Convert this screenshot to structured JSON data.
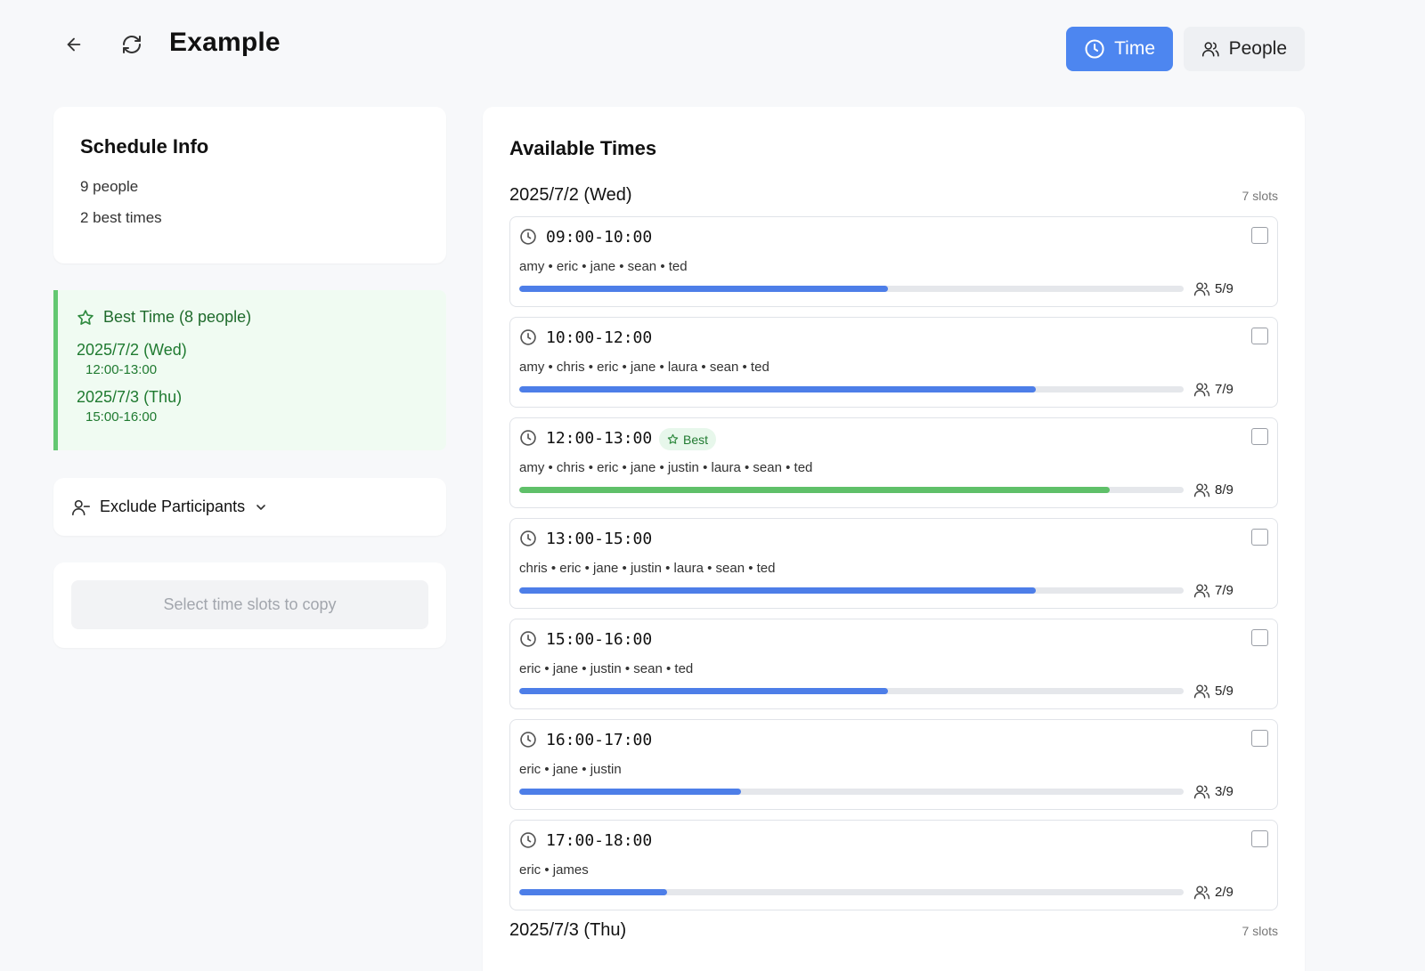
{
  "header": {
    "title": "Example",
    "view_time_label": "Time",
    "view_people_label": "People"
  },
  "schedule_info": {
    "title": "Schedule Info",
    "people": "9 people",
    "best_times": "2 best times"
  },
  "best_time": {
    "title": "Best Time (8 people)",
    "entries": [
      {
        "date": "2025/7/2 (Wed)",
        "time": "12:00-13:00"
      },
      {
        "date": "2025/7/3 (Thu)",
        "time": "15:00-16:00"
      }
    ]
  },
  "exclude": {
    "label": "Exclude Participants"
  },
  "copy": {
    "label": "Select time slots to copy"
  },
  "available": {
    "title": "Available Times",
    "days": [
      {
        "label": "2025/7/2 (Wed)",
        "count": "7 slots",
        "slots": [
          {
            "time": "09:00-10:00",
            "names": "amy • eric • jane • sean • ted",
            "count": "5/9",
            "fraction": 0.5556,
            "best": false
          },
          {
            "time": "10:00-12:00",
            "names": "amy • chris • eric • jane • laura • sean • ted",
            "count": "7/9",
            "fraction": 0.7778,
            "best": false
          },
          {
            "time": "12:00-13:00",
            "names": "amy • chris • eric • jane • justin • laura • sean • ted",
            "count": "8/9",
            "fraction": 0.8889,
            "best": true,
            "badge": "Best"
          },
          {
            "time": "13:00-15:00",
            "names": "chris • eric • jane • justin • laura • sean • ted",
            "count": "7/9",
            "fraction": 0.7778,
            "best": false
          },
          {
            "time": "15:00-16:00",
            "names": "eric • jane • justin • sean • ted",
            "count": "5/9",
            "fraction": 0.5556,
            "best": false
          },
          {
            "time": "16:00-17:00",
            "names": "eric • jane • justin",
            "count": "3/9",
            "fraction": 0.3333,
            "best": false
          },
          {
            "time": "17:00-18:00",
            "names": "eric • james",
            "count": "2/9",
            "fraction": 0.2222,
            "best": false
          }
        ]
      },
      {
        "label": "2025/7/3 (Thu)",
        "count": "7 slots",
        "slots": []
      }
    ]
  },
  "colors": {
    "accent": "#4d86f0",
    "bar_blue": "#4d7ee8",
    "bar_green": "#5fc069",
    "best_bg": "#f0fbf2",
    "best_text": "#1f7a30"
  }
}
